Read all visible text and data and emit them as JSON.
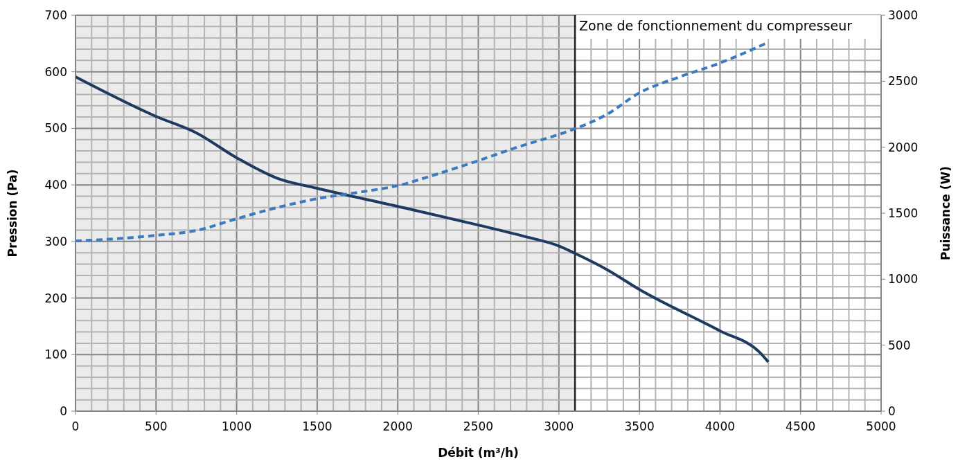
{
  "chart_data": {
    "type": "line",
    "xlabel": "Débit (m³/h)",
    "ylabel": "Pression (Pa)",
    "y2label": "Puissance (W)",
    "xlim": [
      0,
      5000
    ],
    "xticks": [
      0,
      {
        "value": 100,
        "label": null
      },
      {
        "value": 200,
        "label": null
      },
      {
        "value": 300,
        "label": null
      },
      {
        "value": 400,
        "label": null
      },
      500,
      {
        "value": 600,
        "label": null
      },
      {
        "value": 700,
        "label": null
      },
      {
        "value": 800,
        "label": null
      },
      {
        "value": 900,
        "label": null
      },
      1000,
      {
        "value": 1100,
        "label": null
      },
      {
        "value": 1200,
        "label": null
      },
      {
        "value": 1300,
        "label": null
      },
      {
        "value": 1400,
        "label": null
      },
      1500,
      {
        "value": 1600,
        "label": null
      },
      {
        "value": 1700,
        "label": null
      },
      {
        "value": 1800,
        "label": null
      },
      {
        "value": 1900,
        "label": null
      },
      2000,
      {
        "value": 2100,
        "label": null
      },
      {
        "value": 2200,
        "label": null
      },
      {
        "value": 2300,
        "label": null
      },
      {
        "value": 2400,
        "label": null
      },
      2500,
      {
        "value": 2600,
        "label": null
      },
      {
        "value": 2700,
        "label": null
      },
      {
        "value": 2800,
        "label": null
      },
      {
        "value": 2900,
        "label": null
      },
      3000,
      {
        "value": 3100,
        "label": null
      },
      {
        "value": 3200,
        "label": null
      },
      {
        "value": 3300,
        "label": null
      },
      {
        "value": 3400,
        "label": null
      },
      3500,
      {
        "value": 3600,
        "label": null
      },
      {
        "value": 3700,
        "label": null
      },
      {
        "value": 3800,
        "label": null
      },
      {
        "value": 3900,
        "label": null
      },
      4000,
      {
        "value": 4100,
        "label": null
      },
      {
        "value": 4200,
        "label": null
      },
      {
        "value": 4300,
        "label": null
      },
      {
        "value": 4400,
        "label": null
      },
      4500,
      {
        "value": 4600,
        "label": null
      },
      {
        "value": 4700,
        "label": null
      },
      {
        "value": 4800,
        "label": null
      },
      {
        "value": 4900,
        "label": null
      },
      5000
    ],
    "ylim": [
      0,
      700
    ],
    "yticks": [
      0,
      {
        "value": 20,
        "label": null
      },
      {
        "value": 40,
        "label": null
      },
      {
        "value": 60,
        "label": null
      },
      {
        "value": 80,
        "label": null
      },
      100,
      {
        "value": 120,
        "label": null
      },
      {
        "value": 140,
        "label": null
      },
      {
        "value": 160,
        "label": null
      },
      {
        "value": 180,
        "label": null
      },
      200,
      {
        "value": 220,
        "label": null
      },
      {
        "value": 240,
        "label": null
      },
      {
        "value": 260,
        "label": null
      },
      {
        "value": 280,
        "label": null
      },
      300,
      {
        "value": 320,
        "label": null
      },
      {
        "value": 340,
        "label": null
      },
      {
        "value": 360,
        "label": null
      },
      {
        "value": 380,
        "label": null
      },
      400,
      {
        "value": 420,
        "label": null
      },
      {
        "value": 440,
        "label": null
      },
      {
        "value": 460,
        "label": null
      },
      {
        "value": 480,
        "label": null
      },
      500,
      {
        "value": 520,
        "label": null
      },
      {
        "value": 540,
        "label": null
      },
      {
        "value": 560,
        "label": null
      },
      {
        "value": 580,
        "label": null
      },
      600,
      {
        "value": 620,
        "label": null
      },
      {
        "value": 640,
        "label": null
      },
      {
        "value": 660,
        "label": null
      },
      {
        "value": 680,
        "label": null
      },
      700
    ],
    "y2lim": [
      0,
      3000
    ],
    "y2ticks": [
      0,
      500,
      1000,
      1500,
      2000,
      2500,
      3000
    ],
    "grid": true,
    "bands": [
      {
        "axis": "x",
        "from": 0,
        "to": 3100,
        "color": "#ebebeb"
      }
    ],
    "ref_lines": [
      {
        "axis": "x",
        "value": 3100,
        "label": "Zone de fonctionnement du compresseur",
        "color": "#222222"
      }
    ],
    "series": [
      {
        "color": "#1f3a60",
        "line_style": "solid",
        "x": [
          0,
          500,
          750,
          1000,
          1250,
          1500,
          2000,
          2500,
          2800,
          3000,
          3100,
          3300,
          3500,
          4000,
          4250,
          4300
        ],
        "values": [
          591,
          521,
          492,
          448,
          412,
          394,
          362,
          329,
          308,
          292,
          279,
          250,
          215,
          142,
          103,
          87
        ]
      },
      {
        "color": "#3a7abf",
        "line_style": "dashed",
        "axis": "y2",
        "x": [
          0,
          250,
          500,
          750,
          1000,
          1250,
          1500,
          1750,
          2000,
          2250,
          2500,
          2750,
          3000,
          3100,
          3300,
          3500,
          3750,
          4000,
          4300
        ],
        "values": [
          1290,
          1306,
          1332,
          1369,
          1458,
          1542,
          1610,
          1657,
          1709,
          1799,
          1898,
          2003,
          2097,
          2140,
          2250,
          2412,
          2533,
          2638,
          2795
        ]
      }
    ]
  }
}
